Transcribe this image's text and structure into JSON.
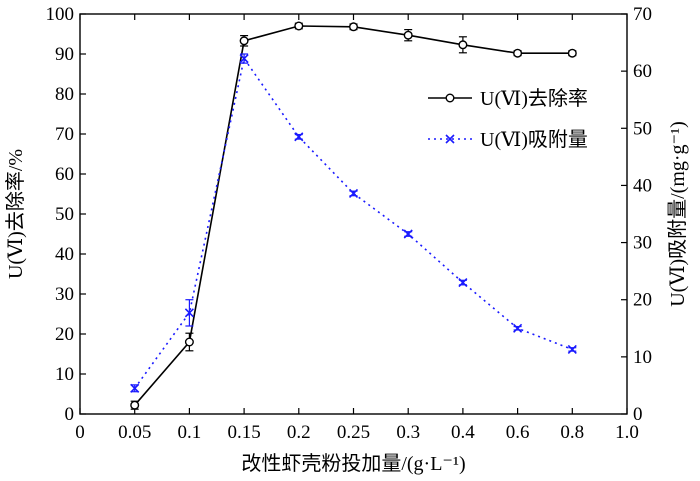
{
  "chart_data": {
    "type": "line",
    "title": "",
    "xlabel": "改性虾壳粉投加量/(g·L⁻¹)",
    "ylabel_left": "U(Ⅵ)去除率/%",
    "ylabel_right": "U(Ⅵ)吸附量/(mg·g⁻¹)",
    "x_tick_labels": [
      "0",
      "0.05",
      "0.1",
      "0.15",
      "0.2",
      "0.25",
      "0.3",
      "0.4",
      "0.6",
      "0.8",
      "1.0"
    ],
    "categories": [
      "0.05",
      "0.1",
      "0.15",
      "0.2",
      "0.25",
      "0.3",
      "0.4",
      "0.6",
      "0.8"
    ],
    "ylim_left": [
      0,
      100
    ],
    "yticks_left": [
      "0",
      "10",
      "20",
      "30",
      "40",
      "50",
      "60",
      "70",
      "80",
      "90",
      "100"
    ],
    "ylim_right": [
      0,
      70
    ],
    "yticks_right": [
      "0",
      "10",
      "20",
      "30",
      "40",
      "50",
      "60",
      "70"
    ],
    "series": [
      {
        "name": "U(Ⅵ)去除率",
        "axis": "left",
        "style": "solid",
        "marker": "circle",
        "color": "#000000",
        "values": [
          2.2,
          18.0,
          93.3,
          97.0,
          96.8,
          94.7,
          92.3,
          90.2,
          90.2
        ],
        "errors": [
          1.0,
          2.2,
          1.3,
          0.7,
          0.7,
          1.4,
          2.0,
          0.6,
          0.6
        ]
      },
      {
        "name": "U(Ⅵ)吸附量",
        "axis": "right",
        "style": "dotted",
        "marker": "x",
        "color": "#1a1aff",
        "values": [
          4.5,
          17.7,
          62.2,
          48.5,
          38.6,
          31.5,
          23.0,
          15.0,
          11.3
        ],
        "errors": [
          0.6,
          2.3,
          0.8,
          0.4,
          0.4,
          0.4,
          0.4,
          0.3,
          0.3
        ]
      }
    ],
    "legend_position": "top-right",
    "grid": false
  }
}
